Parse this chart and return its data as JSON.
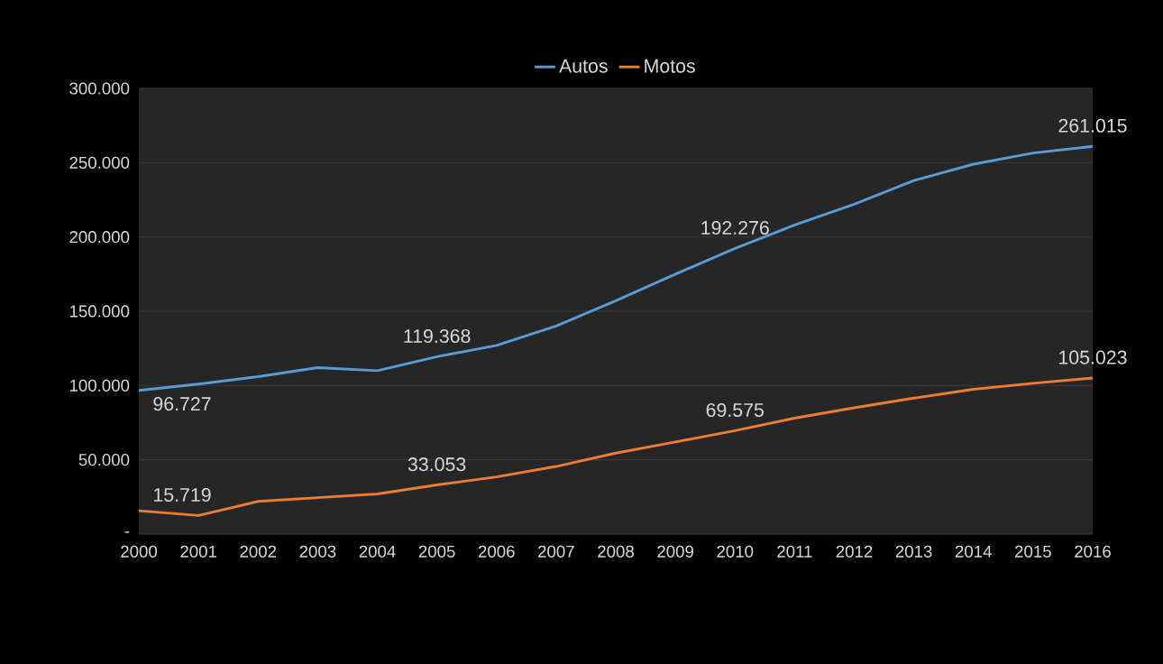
{
  "chart_data": {
    "type": "line",
    "categories": [
      "2000",
      "2001",
      "2002",
      "2003",
      "2004",
      "2005",
      "2006",
      "2007",
      "2008",
      "2009",
      "2010",
      "2011",
      "2012",
      "2013",
      "2014",
      "2015",
      "2016"
    ],
    "series": [
      {
        "name": "Autos",
        "color": "#5b9bd5",
        "values": [
          96727,
          101000,
          106000,
          112000,
          110000,
          119368,
          127000,
          140000,
          157000,
          175000,
          192276,
          208000,
          222000,
          238000,
          249000,
          256500,
          261015
        ],
        "value_labels": [
          "96.727",
          null,
          null,
          null,
          null,
          "119.368",
          null,
          null,
          null,
          null,
          "192.276",
          null,
          null,
          null,
          null,
          null,
          "261.015"
        ]
      },
      {
        "name": "Motos",
        "color": "#ed7d31",
        "values": [
          15719,
          12500,
          22000,
          24500,
          27000,
          33053,
          38500,
          45500,
          54500,
          62000,
          69575,
          78000,
          85000,
          91500,
          97500,
          101500,
          105023
        ],
        "value_labels": [
          "15.719",
          null,
          null,
          null,
          null,
          "33.053",
          null,
          null,
          null,
          null,
          "69.575",
          null,
          null,
          null,
          null,
          null,
          "105.023"
        ]
      }
    ],
    "ylim": [
      0,
      300000
    ],
    "yticks": [
      {
        "value": 0,
        "label": "-"
      },
      {
        "value": 50000,
        "label": "50.000"
      },
      {
        "value": 100000,
        "label": "100.000"
      },
      {
        "value": 150000,
        "label": "150.000"
      },
      {
        "value": 200000,
        "label": "200.000"
      },
      {
        "value": 250000,
        "label": "250.000"
      },
      {
        "value": 300000,
        "label": "300.000"
      }
    ],
    "grid": "y",
    "legend": "top",
    "marker": "none",
    "line_style": "solid"
  }
}
